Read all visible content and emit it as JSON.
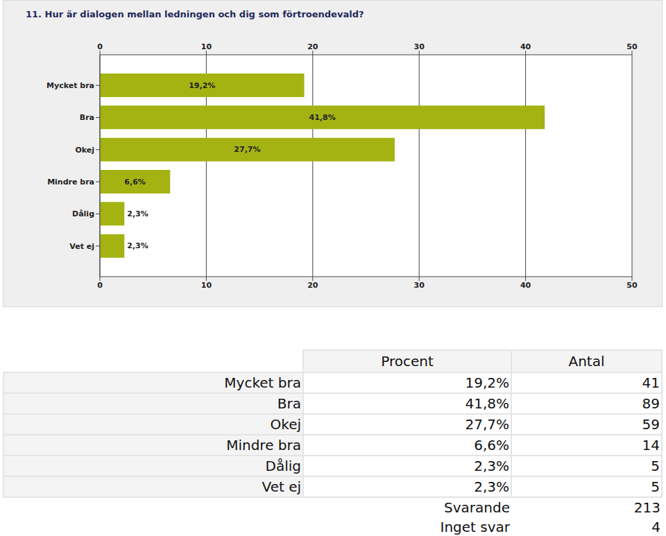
{
  "chart_data": {
    "type": "bar",
    "title": "11. Hur är dialogen mellan ledningen och dig som förtroendevald?",
    "orientation": "horizontal",
    "categories": [
      "Mycket bra",
      "Bra",
      "Okej",
      "Mindre bra",
      "Dålig",
      "Vet ej"
    ],
    "values": [
      19.2,
      41.8,
      27.7,
      6.6,
      2.3,
      2.3
    ],
    "value_labels": [
      "19,2%",
      "41,8%",
      "27,7%",
      "6,6%",
      "2,3%",
      "2,3%"
    ],
    "data_labels": true,
    "color": "#a4b312",
    "xlim": [
      0,
      50
    ],
    "xticks": [
      0,
      10,
      20,
      30,
      40,
      50
    ],
    "grid": true
  },
  "table": {
    "header": [
      "Procent",
      "Antal"
    ],
    "rows": [
      [
        "Mycket bra",
        "19,2%",
        41
      ],
      [
        "Bra",
        "41,8%",
        89
      ],
      [
        "Okej",
        "27,7%",
        59
      ],
      [
        "Mindre bra",
        "6,6%",
        14
      ],
      [
        "Dålig",
        "2,3%",
        5
      ],
      [
        "Vet ej",
        "2,3%",
        5
      ]
    ],
    "footer": [
      [
        "Svarande",
        213
      ],
      [
        "Inget svar",
        4
      ]
    ]
  }
}
